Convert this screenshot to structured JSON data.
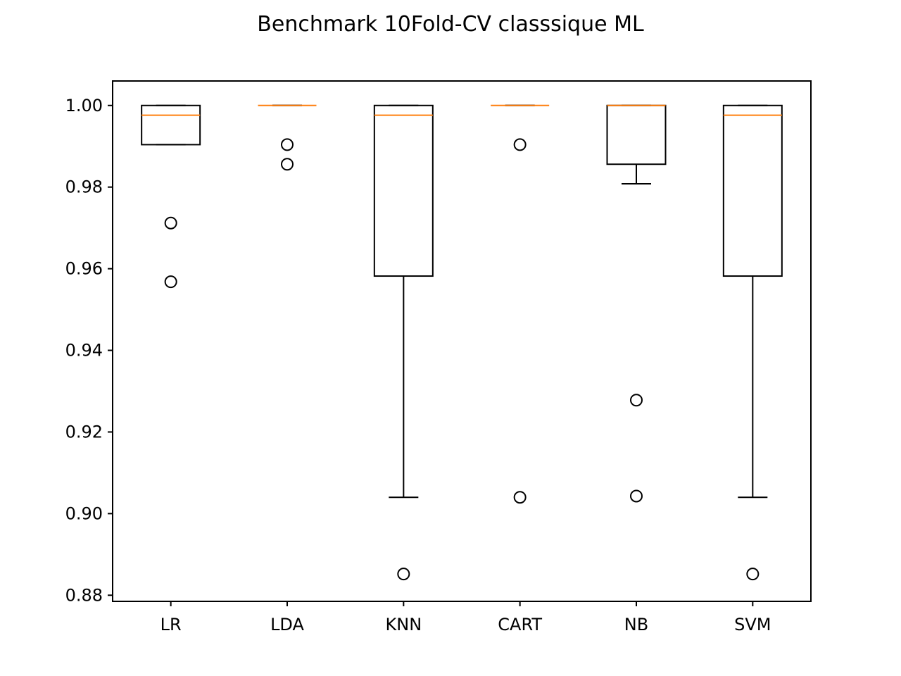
{
  "chart_data": {
    "type": "box",
    "title": "Benchmark 10Fold-CV classsique ML",
    "xlabel": "",
    "ylabel": "",
    "ylim": [
      0.8785,
      1.006
    ],
    "yticks": [
      "0.88",
      "0.90",
      "0.92",
      "0.94",
      "0.96",
      "0.98",
      "1.00"
    ],
    "ytick_values": [
      0.88,
      0.9,
      0.92,
      0.94,
      0.96,
      0.98,
      1.0
    ],
    "grid": false,
    "categories": [
      "LR",
      "LDA",
      "KNN",
      "CART",
      "NB",
      "SVM"
    ],
    "boxes": [
      {
        "name": "LR",
        "q1": 0.9904,
        "median": 0.9976,
        "q3": 1.0,
        "whisker_low": 0.9904,
        "whisker_high": 1.0,
        "outliers": [
          0.9712,
          0.9568
        ]
      },
      {
        "name": "LDA",
        "q1": 1.0,
        "median": 1.0,
        "q3": 1.0,
        "whisker_low": 1.0,
        "whisker_high": 1.0,
        "outliers": [
          0.9904,
          0.9856
        ]
      },
      {
        "name": "KNN",
        "q1": 0.9582,
        "median": 0.9976,
        "q3": 1.0,
        "whisker_low": 0.904,
        "whisker_high": 1.0,
        "outliers": [
          0.8852
        ]
      },
      {
        "name": "CART",
        "q1": 1.0,
        "median": 1.0,
        "q3": 1.0,
        "whisker_low": 1.0,
        "whisker_high": 1.0,
        "outliers": [
          0.9904,
          0.904
        ]
      },
      {
        "name": "NB",
        "q1": 0.9856,
        "median": 1.0,
        "q3": 1.0,
        "whisker_low": 0.9808,
        "whisker_high": 1.0,
        "outliers": [
          0.9278,
          0.9043
        ]
      },
      {
        "name": "SVM",
        "q1": 0.9582,
        "median": 0.9976,
        "q3": 1.0,
        "whisker_low": 0.904,
        "whisker_high": 1.0,
        "outliers": [
          0.8852
        ]
      }
    ],
    "colors": {
      "box": "#000000",
      "median": "#ff7f0e",
      "outlier": "#000000"
    }
  }
}
